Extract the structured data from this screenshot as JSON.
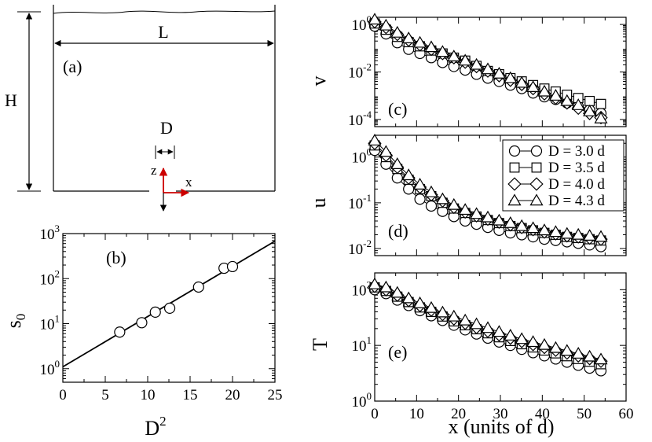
{
  "schematic": {
    "panel_label": "(a)",
    "width_label": "L",
    "height_label": "H",
    "orifice_label": "D",
    "axis_z": "z",
    "axis_x": "x",
    "arrow_color": "#cc0000"
  },
  "legend": {
    "entries": [
      {
        "label": "D = 3.0 d",
        "marker": "circle"
      },
      {
        "label": "D = 3.5 d",
        "marker": "square"
      },
      {
        "label": "D = 4.0 d",
        "marker": "diamond"
      },
      {
        "label": "D = 4.3 d",
        "marker": "triangle"
      }
    ]
  },
  "chart_data": [
    {
      "id": "b",
      "type": "scatter",
      "panel_label": "(b)",
      "xlabel": "D",
      "xlabel_sup": "2",
      "ylabel": "s",
      "ylabel_sub": "0",
      "xlim": [
        0,
        25
      ],
      "ylim": [
        0.5,
        1000
      ],
      "yscale": "log",
      "xticks": [
        "0",
        "5",
        "10",
        "15",
        "20",
        "25"
      ],
      "xtick_values": [
        0,
        5,
        10,
        15,
        20,
        25
      ],
      "yticks": [
        {
          "value": 1,
          "base": "10",
          "exp": "0"
        },
        {
          "value": 10,
          "base": "10",
          "exp": "1"
        },
        {
          "value": 100,
          "base": "10",
          "exp": "2"
        },
        {
          "value": 1000,
          "base": "10",
          "exp": "3"
        }
      ],
      "points": [
        {
          "x": 6.7,
          "y": 6.5
        },
        {
          "x": 9.3,
          "y": 10.5
        },
        {
          "x": 10.9,
          "y": 18
        },
        {
          "x": 12.6,
          "y": 22
        },
        {
          "x": 16.0,
          "y": 65
        },
        {
          "x": 19.0,
          "y": 170
        },
        {
          "x": 20.0,
          "y": 185
        }
      ],
      "fit_line": [
        {
          "x": 0,
          "y": 1.1
        },
        {
          "x": 25,
          "y": 680
        }
      ]
    },
    {
      "id": "c",
      "type": "scatter",
      "panel_label": "(c)",
      "ylabel": "v",
      "yscale": "log",
      "xlim": [
        0,
        60
      ],
      "ylim": [
        5e-05,
        2
      ],
      "yticks": [
        {
          "value": 0.0001,
          "base": "10",
          "exp": "-4"
        },
        {
          "value": 0.01,
          "base": "10",
          "exp": "-2"
        },
        {
          "value": 1,
          "base": "10",
          "exp": "0"
        }
      ],
      "x": [
        0,
        2.7,
        5.4,
        8.1,
        10.8,
        13.5,
        16.2,
        18.9,
        21.6,
        24.3,
        27,
        29.7,
        32.4,
        35.1,
        37.8,
        40.5,
        43.2,
        45.9,
        48.6,
        51.3,
        54
      ],
      "series": [
        {
          "name": "D = 3.0 d",
          "marker": "circle",
          "values": [
            0.85,
            0.4,
            0.17,
            0.09,
            0.06,
            0.04,
            0.025,
            0.017,
            0.012,
            0.008,
            0.0055,
            0.004,
            0.0028,
            0.002,
            0.0013,
            0.0009,
            0.0007,
            0.0005,
            0.00035,
            0.00025,
            0.00018
          ]
        },
        {
          "name": "D = 3.5 d",
          "marker": "square",
          "values": [
            1.1,
            0.6,
            0.3,
            0.18,
            0.12,
            0.08,
            0.06,
            0.04,
            0.03,
            0.018,
            0.011,
            0.008,
            0.0055,
            0.004,
            0.0028,
            0.002,
            0.0015,
            0.0011,
            0.0008,
            0.0006,
            0.00045
          ]
        },
        {
          "name": "D = 4.0 d",
          "marker": "diamond",
          "values": [
            1.3,
            0.75,
            0.38,
            0.22,
            0.14,
            0.09,
            0.06,
            0.04,
            0.026,
            0.017,
            0.011,
            0.007,
            0.0045,
            0.003,
            0.002,
            0.0012,
            0.0008,
            0.0005,
            0.0003,
            0.00018,
            0.00012
          ]
        },
        {
          "name": "D = 4.3 d",
          "marker": "triangle",
          "values": [
            1.6,
            0.9,
            0.45,
            0.26,
            0.17,
            0.11,
            0.07,
            0.045,
            0.03,
            0.02,
            0.013,
            0.0085,
            0.0055,
            0.0035,
            0.0023,
            0.0015,
            0.001,
            0.0006,
            0.0004,
            0.00022,
            0.00011
          ]
        }
      ]
    },
    {
      "id": "d",
      "type": "scatter",
      "panel_label": "(d)",
      "ylabel": "u",
      "yscale": "log",
      "xlim": [
        0,
        60
      ],
      "ylim": [
        0.007,
        3
      ],
      "yticks": [
        {
          "value": 0.01,
          "base": "10",
          "exp": "-2"
        },
        {
          "value": 0.1,
          "base": "10",
          "exp": "-1"
        },
        {
          "value": 1,
          "base": "10",
          "exp": "0"
        }
      ],
      "x": [
        0,
        2.7,
        5.4,
        8.1,
        10.8,
        13.5,
        16.2,
        18.9,
        21.6,
        24.3,
        27,
        29.7,
        32.4,
        35.1,
        37.8,
        40.5,
        43.2,
        45.9,
        48.6,
        51.3,
        54
      ],
      "series": [
        {
          "name": "D = 3.0 d",
          "marker": "circle",
          "values": [
            1.4,
            0.7,
            0.35,
            0.2,
            0.12,
            0.085,
            0.065,
            0.05,
            0.04,
            0.034,
            0.029,
            0.025,
            0.022,
            0.02,
            0.018,
            0.016,
            0.015,
            0.014,
            0.013,
            0.012,
            0.011
          ]
        },
        {
          "name": "D = 3.5 d",
          "marker": "square",
          "values": [
            1.8,
            1.0,
            0.55,
            0.32,
            0.2,
            0.14,
            0.1,
            0.075,
            0.06,
            0.05,
            0.042,
            0.036,
            0.031,
            0.028,
            0.025,
            0.022,
            0.02,
            0.018,
            0.017,
            0.016,
            0.015
          ]
        },
        {
          "name": "D = 4.0 d",
          "marker": "diamond",
          "values": [
            2.0,
            1.1,
            0.6,
            0.35,
            0.22,
            0.15,
            0.11,
            0.08,
            0.063,
            0.052,
            0.044,
            0.038,
            0.033,
            0.029,
            0.026,
            0.023,
            0.021,
            0.019,
            0.018,
            0.017,
            0.016
          ]
        },
        {
          "name": "D = 4.3 d",
          "marker": "triangle",
          "values": [
            2.3,
            1.3,
            0.7,
            0.4,
            0.25,
            0.17,
            0.12,
            0.09,
            0.07,
            0.057,
            0.048,
            0.041,
            0.036,
            0.031,
            0.028,
            0.025,
            0.023,
            0.021,
            0.02,
            0.019,
            0.018
          ]
        }
      ]
    },
    {
      "id": "e",
      "type": "scatter",
      "panel_label": "(e)",
      "ylabel": "T",
      "xlabel": "x (units of d)",
      "yscale": "log",
      "xlim": [
        0,
        60
      ],
      "ylim": [
        1,
        200
      ],
      "xticks": [
        "0",
        "10",
        "20",
        "30",
        "40",
        "50",
        "60"
      ],
      "xtick_values": [
        0,
        10,
        20,
        30,
        40,
        50,
        60
      ],
      "yticks": [
        {
          "value": 1,
          "base": "10",
          "exp": "0"
        },
        {
          "value": 10,
          "base": "10",
          "exp": "1"
        },
        {
          "value": 100,
          "base": "10",
          "exp": "2"
        }
      ],
      "x": [
        0,
        2.7,
        5.4,
        8.1,
        10.8,
        13.5,
        16.2,
        18.9,
        21.6,
        24.3,
        27,
        29.7,
        32.4,
        35.1,
        37.8,
        40.5,
        43.2,
        45.9,
        48.6,
        51.3,
        54
      ],
      "series": [
        {
          "name": "D = 3.0 d",
          "marker": "circle",
          "values": [
            100,
            85,
            65,
            52,
            42,
            34,
            28,
            23,
            19,
            16,
            13.5,
            11.5,
            10,
            8.5,
            7.4,
            6.5,
            5.7,
            5,
            4.4,
            3.9,
            3.5
          ]
        },
        {
          "name": "D = 3.5 d",
          "marker": "square",
          "values": [
            110,
            95,
            75,
            60,
            48,
            40,
            33,
            27,
            23,
            19.5,
            16.5,
            14,
            12,
            10.5,
            9.2,
            8.1,
            7.2,
            6.4,
            5.7,
            5.1,
            4.6
          ]
        },
        {
          "name": "D = 4.0 d",
          "marker": "diamond",
          "values": [
            115,
            100,
            80,
            64,
            52,
            43,
            36,
            30,
            25,
            21,
            18,
            15.5,
            13.5,
            11.8,
            10.4,
            9.2,
            8.2,
            7.3,
            6.5,
            5.8,
            5.2
          ]
        },
        {
          "name": "D = 4.3 d",
          "marker": "triangle",
          "values": [
            125,
            110,
            88,
            70,
            57,
            47,
            39,
            33,
            28,
            24,
            20.5,
            17.5,
            15,
            13,
            11.5,
            10.2,
            9,
            8,
            7.1,
            6.3,
            5.6
          ]
        }
      ]
    }
  ]
}
